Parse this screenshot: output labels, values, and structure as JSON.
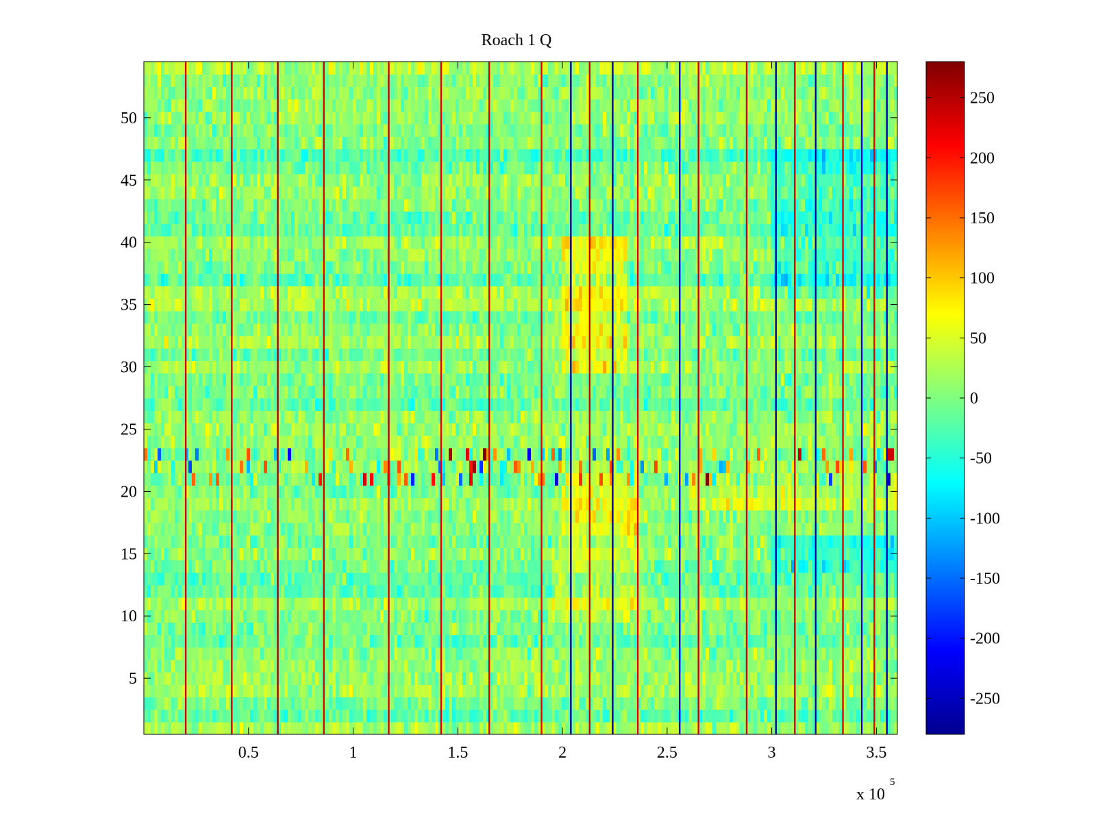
{
  "chart_data": {
    "type": "heatmap",
    "title": "Roach 1 Q",
    "xlabel": "",
    "ylabel": "",
    "x_range": [
      0,
      360000
    ],
    "y_range": [
      0.5,
      54.5
    ],
    "rows": 54,
    "x_ticks": [
      {
        "value": 50000,
        "label": "0.5"
      },
      {
        "value": 100000,
        "label": "1"
      },
      {
        "value": 150000,
        "label": "1.5"
      },
      {
        "value": 200000,
        "label": "2"
      },
      {
        "value": 250000,
        "label": "2.5"
      },
      {
        "value": 300000,
        "label": "3"
      },
      {
        "value": 350000,
        "label": "3.5"
      }
    ],
    "x_exponent_base": "x 10",
    "x_exponent_power": "5",
    "y_ticks": [
      {
        "value": 5,
        "label": "5"
      },
      {
        "value": 10,
        "label": "10"
      },
      {
        "value": 15,
        "label": "15"
      },
      {
        "value": 20,
        "label": "20"
      },
      {
        "value": 25,
        "label": "25"
      },
      {
        "value": 30,
        "label": "30"
      },
      {
        "value": 35,
        "label": "35"
      },
      {
        "value": 40,
        "label": "40"
      },
      {
        "value": 45,
        "label": "45"
      },
      {
        "value": 50,
        "label": "50"
      }
    ],
    "colorbar": {
      "colormap": "jet",
      "range": [
        -280,
        280
      ],
      "ticks": [
        {
          "value": 250,
          "label": "250"
        },
        {
          "value": 200,
          "label": "200"
        },
        {
          "value": 150,
          "label": "150"
        },
        {
          "value": 100,
          "label": "100"
        },
        {
          "value": 50,
          "label": "50"
        },
        {
          "value": 0,
          "label": "0"
        },
        {
          "value": -50,
          "label": "-50"
        },
        {
          "value": -100,
          "label": "-100"
        },
        {
          "value": -150,
          "label": "-150"
        },
        {
          "value": -200,
          "label": "-200"
        },
        {
          "value": -250,
          "label": "-250"
        }
      ]
    },
    "background_level": 5,
    "vertical_spikes": [
      {
        "x": 20000,
        "value": 230
      },
      {
        "x": 42000,
        "value": 230
      },
      {
        "x": 64000,
        "value": 260
      },
      {
        "x": 86000,
        "value": 230
      },
      {
        "x": 117000,
        "value": 240
      },
      {
        "x": 142000,
        "value": 220
      },
      {
        "x": 165000,
        "value": 230
      },
      {
        "x": 190000,
        "value": 220
      },
      {
        "x": 204000,
        "value": -270
      },
      {
        "x": 213000,
        "value": 240
      },
      {
        "x": 224000,
        "value": -260
      },
      {
        "x": 236000,
        "value": 220
      },
      {
        "x": 256000,
        "value": -240
      },
      {
        "x": 265000,
        "value": 240
      },
      {
        "x": 288000,
        "value": 230
      },
      {
        "x": 302000,
        "value": -250
      },
      {
        "x": 311000,
        "value": 230
      },
      {
        "x": 321000,
        "value": -260
      },
      {
        "x": 334000,
        "value": 220
      },
      {
        "x": 343000,
        "value": -230
      },
      {
        "x": 349000,
        "value": 230
      },
      {
        "x": 355000,
        "value": -250
      }
    ],
    "regions": [
      {
        "x_range": [
          200000,
          230000
        ],
        "y_range": [
          30,
          40
        ],
        "value": 55
      },
      {
        "x_range": [
          200000,
          235000
        ],
        "y_range": [
          17,
          21
        ],
        "value": 55
      },
      {
        "x_range": [
          195000,
          240000
        ],
        "y_range": [
          10,
          16
        ],
        "value": 35
      },
      {
        "x_range": [
          300000,
          360000
        ],
        "y_range": [
          36,
          47
        ],
        "value": -40
      },
      {
        "x_range": [
          300000,
          360000
        ],
        "y_range": [
          14,
          16
        ],
        "value": -45
      },
      {
        "x_range": [
          260000,
          360000
        ],
        "y_range": [
          19,
          21
        ],
        "value": 30
      }
    ],
    "noisy_row_band": [
      21,
      23
    ],
    "grid": false,
    "legend": "none"
  }
}
